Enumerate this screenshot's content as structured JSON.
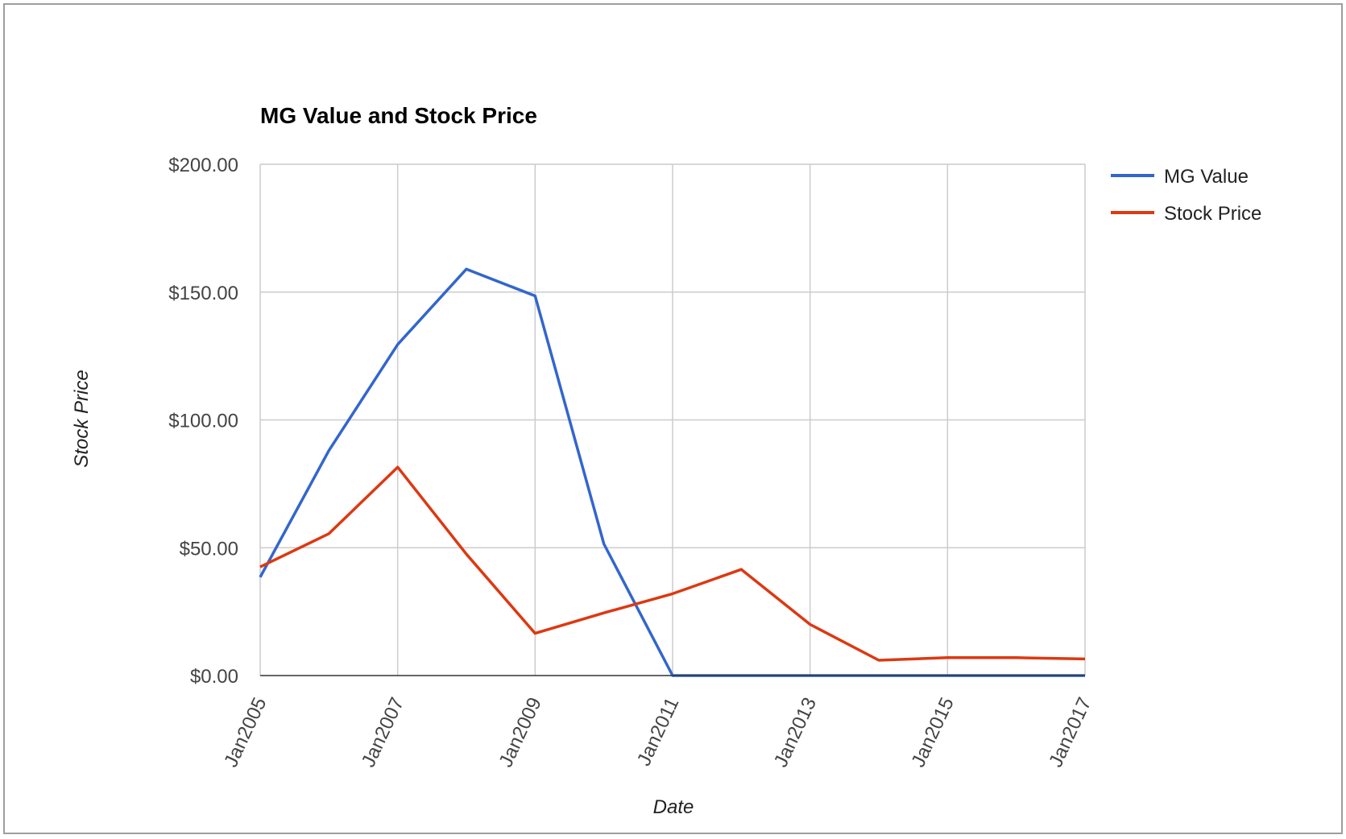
{
  "chart_data": {
    "type": "line",
    "title": "MG Value and Stock Price",
    "xlabel": "Date",
    "ylabel": "Stock Price",
    "x": [
      "Jan2005",
      "Jan2006",
      "Jan2007",
      "Jan2008",
      "Jan2009",
      "Jan2010",
      "Jan2011",
      "Jan2012",
      "Jan2013",
      "Jan2014",
      "Jan2015",
      "Jan2016",
      "Jan2017"
    ],
    "xticks": [
      "Jan2005",
      "Jan2007",
      "Jan2009",
      "Jan2011",
      "Jan2013",
      "Jan2015",
      "Jan2017"
    ],
    "yticks": [
      0,
      50,
      100,
      150,
      200
    ],
    "ytick_labels": [
      "$0.00",
      "$50.00",
      "$100.00",
      "$150.00",
      "$200.00"
    ],
    "ylim": [
      0,
      200
    ],
    "grid": true,
    "legend_position": "right",
    "series": [
      {
        "name": "MG Value",
        "color": "#3366cc",
        "values": [
          38.5,
          88,
          129.5,
          159,
          148.5,
          51.5,
          0,
          0,
          0,
          0,
          0,
          0,
          0
        ]
      },
      {
        "name": "Stock Price",
        "color": "#dc3912",
        "values": [
          42.5,
          55.5,
          81.5,
          47.5,
          16.5,
          24.5,
          32,
          41.5,
          20,
          6,
          7,
          7,
          6.5
        ]
      }
    ]
  }
}
